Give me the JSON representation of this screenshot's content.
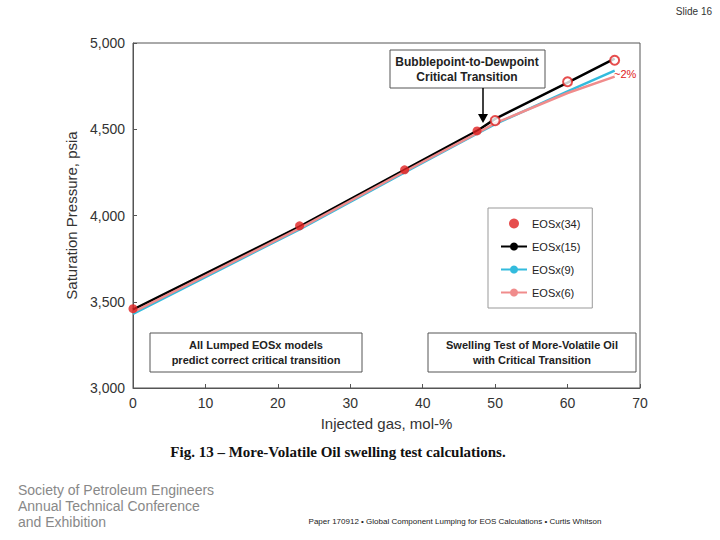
{
  "chart_data": {
    "type": "line",
    "x_label": "Injected gas, mol-%",
    "y_label": "Saturation Pressure, psia",
    "xlim": [
      0,
      70
    ],
    "xticks": [
      0,
      10,
      20,
      30,
      40,
      50,
      60,
      70
    ],
    "ylim": [
      3000,
      5000
    ],
    "yticks": [
      3000,
      3500,
      4000,
      4500,
      5000
    ],
    "grid": false,
    "legend": "right",
    "x": [
      0,
      23,
      37.5,
      47.5,
      50,
      60,
      66.5
    ],
    "series": [
      {
        "name": "EOSx(34)",
        "type": "scatter",
        "color": "#e02020",
        "marker": "circle",
        "values": [
          3460,
          3940,
          4265,
          4490,
          null,
          null,
          null
        ]
      },
      {
        "name": "EOSx(34)",
        "type": "scatter",
        "color": "#e02020",
        "marker": "open_circle",
        "values": [
          null,
          null,
          null,
          null,
          4550,
          4775,
          4900
        ]
      },
      {
        "name": "EOSx(15)",
        "type": "line",
        "color": "#000000",
        "marker": "none",
        "line_style": "solid",
        "values": [
          3455,
          3935,
          4265,
          4490,
          4560,
          4770,
          4910
        ]
      },
      {
        "name": "EOSx(9)",
        "type": "line",
        "color": "#33bbdd",
        "marker": "none",
        "line_style": "solid",
        "values": [
          3430,
          3920,
          4250,
          4475,
          4530,
          4720,
          4840
        ]
      },
      {
        "name": "EOSx(6)",
        "type": "line",
        "color": "#f08c8c",
        "marker": "none",
        "line_style": "solid",
        "values": [
          3440,
          3925,
          4255,
          4478,
          4535,
          4710,
          4805
        ]
      }
    ],
    "annotations": [
      "Bubblepoint-to-Dewpoint\nCritical Transition",
      "All Lumped EOSx models\npredict correct critical transition",
      "Swelling Test of More-Volatile Oil\nwith Critical Transition",
      "~2%"
    ],
    "caption": "Fig. 13 – More-Volatile Oil swelling test calculations.",
    "slide_label": "Slide 16",
    "footer_left": "Society of Petroleum Engineers\nAnnual Technical Conference\nand Exhibition",
    "footer_center": "Paper 170912 • Global Component Lumping for EOS Calculations • Curtis Whitson"
  }
}
